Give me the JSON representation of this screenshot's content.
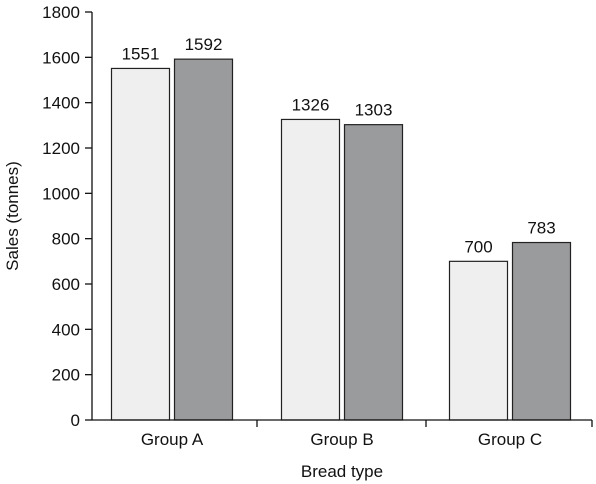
{
  "chart_data": {
    "type": "bar",
    "categories": [
      "Group A",
      "Group B",
      "Group C"
    ],
    "series": [
      {
        "values": [
          1551,
          1326,
          700
        ],
        "color": "#efefef"
      },
      {
        "values": [
          1592,
          1303,
          783
        ],
        "color": "#9a9b9d"
      }
    ],
    "data_labels": [
      [
        "1551",
        "1326",
        "700"
      ],
      [
        "1592",
        "1303",
        "783"
      ]
    ],
    "xlabel": "Bread type",
    "ylabel": "Sales (tonnes)",
    "ylim": [
      0,
      1800
    ],
    "yticks": [
      0,
      200,
      400,
      600,
      800,
      1000,
      1200,
      1400,
      1600,
      1800
    ],
    "ytick_labels": [
      "0",
      "200",
      "400",
      "600",
      "800",
      "1000",
      "1200",
      "1400",
      "1600",
      "1800"
    ],
    "grid": false,
    "legend": "none"
  }
}
